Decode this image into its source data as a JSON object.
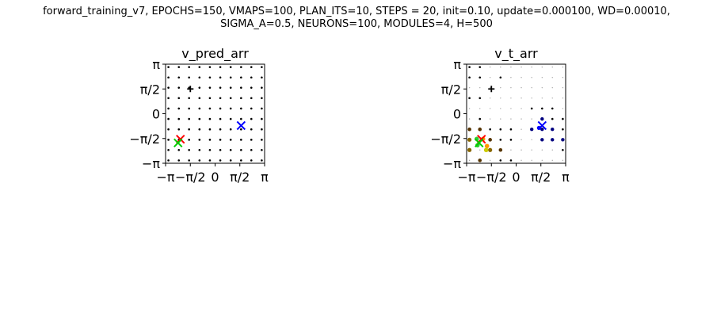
{
  "figure": {
    "suptitle_line1": "forward_training_v7, EPOCHS=150, VMAPS=100, PLAN_ITS=10, STEPS = 20, init=0.10, update=0.000100, WD=0.00010,",
    "suptitle_line2": "SIGMA_A=0.5, NEURONS=100, MODULES=4, H=500"
  },
  "chart_data": [
    {
      "type": "scatter",
      "title": "v_pred_arr",
      "xlabel": "",
      "ylabel": "",
      "xlim": [
        -3.1416,
        3.1416
      ],
      "ylim": [
        -3.1416,
        3.1416
      ],
      "xticks": [
        "−π",
        "−π/2",
        "0",
        "π/2",
        "π"
      ],
      "yticks": [
        "−π",
        "−π/2",
        "0",
        "π/2",
        "π"
      ],
      "grid": false,
      "dot_grid": {
        "coords": [
          -2.96,
          -2.3,
          -1.65,
          -0.99,
          -0.33,
          0.33,
          0.99,
          1.65,
          2.3,
          2.96
        ],
        "color": "#000000",
        "size": 1.3
      },
      "series": [
        {
          "marker": "plus",
          "color": "#000000",
          "points": [
            [
              -1.57,
              1.57
            ]
          ]
        },
        {
          "marker": "x",
          "color": "#ff0000",
          "points": [
            [
              -2.2,
              -1.62
            ]
          ]
        },
        {
          "marker": "x",
          "color": "#00cc00",
          "points": [
            [
              -2.35,
              -1.85
            ]
          ]
        },
        {
          "marker": "x",
          "color": "#0000ff",
          "points": [
            [
              1.65,
              -0.75
            ]
          ]
        }
      ]
    },
    {
      "type": "scatter",
      "title": "v_t_arr",
      "xlabel": "",
      "ylabel": "",
      "xlim": [
        -3.1416,
        3.1416
      ],
      "ylim": [
        -3.1416,
        3.1416
      ],
      "xticks": [
        "−π",
        "−π/2",
        "0",
        "π/2",
        "π"
      ],
      "yticks": [
        "−π",
        "−π/2",
        "0",
        "π/2",
        "π"
      ],
      "grid": false,
      "dot_grid": {
        "coords": [
          -2.96,
          -2.3,
          -1.65,
          -0.99,
          -0.33,
          0.33,
          0.99,
          1.65,
          2.3,
          2.96
        ],
        "color": "#aaaaaa",
        "size": 0.7
      },
      "series": [
        {
          "marker": "dot",
          "color": "#000000",
          "size": 1.3,
          "points": [
            [
              -2.96,
              2.96
            ],
            [
              -2.3,
              2.96
            ],
            [
              -2.96,
              2.3
            ],
            [
              -2.3,
              2.3
            ],
            [
              -0.99,
              2.3
            ],
            [
              -2.96,
              0.99
            ],
            [
              -2.3,
              0.99
            ],
            [
              0.99,
              0.33
            ],
            [
              1.65,
              0.33
            ],
            [
              2.3,
              0.33
            ],
            [
              -2.3,
              -0.33
            ],
            [
              1.65,
              -0.33
            ],
            [
              2.3,
              -0.33
            ],
            [
              2.96,
              -0.33
            ],
            [
              -1.65,
              -0.99
            ],
            [
              -0.99,
              -0.99
            ],
            [
              -0.33,
              -0.99
            ],
            [
              2.3,
              -0.99
            ],
            [
              2.96,
              -0.99
            ],
            [
              -0.99,
              -1.65
            ],
            [
              -0.33,
              -1.65
            ],
            [
              2.96,
              -2.3
            ],
            [
              -0.99,
              -2.96
            ],
            [
              -0.33,
              -2.96
            ]
          ]
        },
        {
          "marker": "dot",
          "color": "#000080",
          "size": 2.2,
          "points": [
            [
              0.99,
              -0.99
            ],
            [
              1.65,
              -0.33
            ],
            [
              1.65,
              -0.99
            ],
            [
              1.65,
              -1.65
            ],
            [
              2.3,
              -0.99
            ],
            [
              2.3,
              -1.65
            ],
            [
              2.96,
              -1.65
            ]
          ]
        },
        {
          "marker": "dot",
          "color": "#0000ff",
          "size": 2.6,
          "points": [
            [
              1.45,
              -0.9
            ]
          ]
        },
        {
          "marker": "dot",
          "color": "#553300",
          "size": 2.3,
          "points": [
            [
              -2.96,
              -0.99
            ],
            [
              -2.3,
              -0.99
            ],
            [
              -1.65,
              -1.65
            ],
            [
              -0.99,
              -2.3
            ],
            [
              -2.3,
              -2.96
            ]
          ]
        },
        {
          "marker": "dot",
          "color": "#886600",
          "size": 2.6,
          "points": [
            [
              -2.96,
              -1.65
            ],
            [
              -1.65,
              -2.3
            ],
            [
              -2.96,
              -2.3
            ]
          ]
        },
        {
          "marker": "dot",
          "color": "#ff9900",
          "size": 2.8,
          "points": [
            [
              -2.1,
              -1.6
            ],
            [
              -1.85,
              -2.05
            ]
          ]
        },
        {
          "marker": "dot",
          "color": "#33cc33",
          "size": 2.8,
          "points": [
            [
              -2.5,
              -1.6
            ],
            [
              -2.45,
              -2.0
            ]
          ]
        },
        {
          "marker": "dot",
          "color": "#cccc00",
          "size": 2.8,
          "points": [
            [
              -1.9,
              -2.3
            ]
          ]
        },
        {
          "marker": "plus",
          "color": "#000000",
          "points": [
            [
              -1.57,
              1.57
            ]
          ]
        },
        {
          "marker": "x",
          "color": "#ff0000",
          "points": [
            [
              -2.2,
              -1.62
            ]
          ]
        },
        {
          "marker": "x",
          "color": "#00cc00",
          "points": [
            [
              -2.35,
              -1.85
            ]
          ]
        },
        {
          "marker": "x",
          "color": "#0000ff",
          "points": [
            [
              1.65,
              -0.75
            ]
          ]
        }
      ]
    }
  ]
}
